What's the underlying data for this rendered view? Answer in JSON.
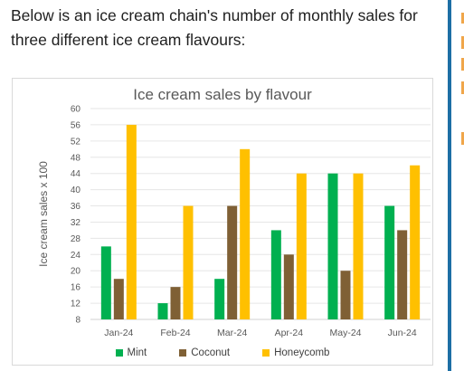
{
  "intro_text": "Below is an ice cream chain's number of monthly sales for three different ice cream flavours:",
  "colors": {
    "mint": "#00b050",
    "coconut": "#7f6035",
    "honeycomb": "#ffc000",
    "accent": "#1d6fa5"
  },
  "chart_data": {
    "type": "bar",
    "title": "Ice cream sales by flavour",
    "xlabel": "",
    "ylabel": "Ice cream sales x 100",
    "categories": [
      "Jan-24",
      "Feb-24",
      "Mar-24",
      "Apr-24",
      "May-24",
      "Jun-24"
    ],
    "series": [
      {
        "name": "Mint",
        "values": [
          26,
          12,
          18,
          30,
          44,
          36
        ]
      },
      {
        "name": "Coconut",
        "values": [
          18,
          16,
          36,
          24,
          20,
          30
        ]
      },
      {
        "name": "Honeycomb",
        "values": [
          56,
          36,
          50,
          44,
          44,
          46
        ]
      }
    ],
    "ylim": [
      8,
      60
    ],
    "yticks": [
      8,
      12,
      16,
      20,
      24,
      28,
      32,
      36,
      40,
      44,
      48,
      52,
      56,
      60
    ],
    "grid": true,
    "legend_position": "bottom"
  }
}
